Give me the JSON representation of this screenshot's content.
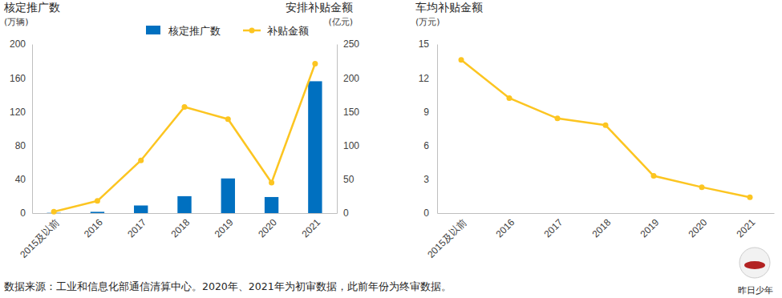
{
  "chart_data": [
    {
      "type": "bar",
      "y_label": "核定推广数",
      "y_unit": "(万辆)",
      "y2_label": "安排补贴金额",
      "y2_unit": "(亿元)",
      "categories": [
        "2015及以前",
        "2016",
        "2017",
        "2018",
        "2019",
        "2020",
        "2021"
      ],
      "series": [
        {
          "name": "核定推广数",
          "type": "bar",
          "color": "#0070c0",
          "values": [
            0.3,
            1.5,
            9,
            20,
            41,
            19,
            156
          ]
        },
        {
          "name": "补贴金额",
          "type": "line",
          "axis": "y2",
          "color": "#fcc521",
          "marker": "circle",
          "values": [
            2,
            18,
            78,
            157,
            139,
            45,
            221
          ]
        }
      ],
      "ylim": [
        0,
        200
      ],
      "yticks": [
        0,
        40,
        80,
        120,
        160,
        200
      ],
      "y2lim": [
        0,
        250
      ],
      "y2ticks": [
        0,
        50,
        100,
        150,
        200,
        250
      ],
      "legend": "top"
    },
    {
      "type": "line",
      "title": "车均补贴金额",
      "y_unit": "(万元)",
      "categories": [
        "2015及以前",
        "2016",
        "2017",
        "2018",
        "2019",
        "2020",
        "2021"
      ],
      "values": [
        13.6,
        10.2,
        8.4,
        7.8,
        3.3,
        2.3,
        1.4
      ],
      "color": "#fcc521",
      "marker": "circle",
      "ylim": [
        0,
        15
      ],
      "yticks": [
        0,
        3,
        6,
        9,
        12,
        15
      ]
    }
  ],
  "footer": {
    "source": "数据来源：工业和信息化部通信清算中心。2020年、2021年为初审数据，此前年份为终审数据。",
    "watermark": "昨日少年"
  }
}
